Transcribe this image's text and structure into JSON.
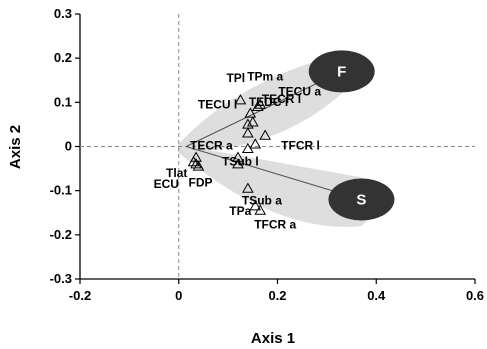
{
  "chart_data": {
    "type": "scatter",
    "xlabel": "Axis 1",
    "ylabel": "Axis 2",
    "xlim": [
      -0.2,
      0.6
    ],
    "ylim": [
      -0.3,
      0.3
    ],
    "xticks": [
      "-0.2",
      "0",
      "0.2",
      "0.4",
      "0.6"
    ],
    "yticks": [
      "0.3",
      "0.2",
      "0.1",
      "0",
      "-0.1",
      "-0.2",
      "-0.3"
    ],
    "reference_lines": "dashed lines at x=0 and y=0",
    "marker": "open-triangle",
    "points": [
      {
        "label": "TPl",
        "x": 0.125,
        "y": 0.105
      },
      {
        "label": "TPm a",
        "x": 0.165,
        "y": 0.095
      },
      {
        "label": "TECR l",
        "x": 0.16,
        "y": 0.09
      },
      {
        "label": "TECU l",
        "x": 0.14,
        "y": 0.05
      },
      {
        "label": "TEDC l",
        "x": 0.15,
        "y": 0.055
      },
      {
        "label": "TECU a",
        "x": 0.145,
        "y": 0.075
      },
      {
        "label": "TFCR l",
        "x": 0.175,
        "y": 0.025
      },
      {
        "label": "",
        "x": 0.14,
        "y": 0.03
      },
      {
        "label": "",
        "x": 0.155,
        "y": 0.005
      },
      {
        "label": "",
        "x": 0.14,
        "y": -0.005
      },
      {
        "label": "TECR a",
        "x": 0.035,
        "y": -0.025
      },
      {
        "label": "TSub l",
        "x": 0.12,
        "y": -0.025
      },
      {
        "label": "",
        "x": 0.12,
        "y": -0.04
      },
      {
        "label": "Tlat",
        "x": 0.035,
        "y": -0.04
      },
      {
        "label": "FDP",
        "x": 0.04,
        "y": -0.045
      },
      {
        "label": "ECU",
        "x": 0.03,
        "y": -0.035
      },
      {
        "label": "TSub a",
        "x": 0.14,
        "y": -0.095
      },
      {
        "label": "TPa",
        "x": 0.155,
        "y": -0.135
      },
      {
        "label": "TFCR a",
        "x": 0.165,
        "y": -0.145
      }
    ],
    "groups": [
      {
        "name": "F",
        "x": 0.33,
        "y": 0.17,
        "color": "#333333"
      },
      {
        "name": "S",
        "x": 0.37,
        "y": -0.12,
        "color": "#333333"
      }
    ],
    "colors": {
      "ellipse": "#333333",
      "envelope": "#dedede",
      "marker": "#000000"
    }
  }
}
